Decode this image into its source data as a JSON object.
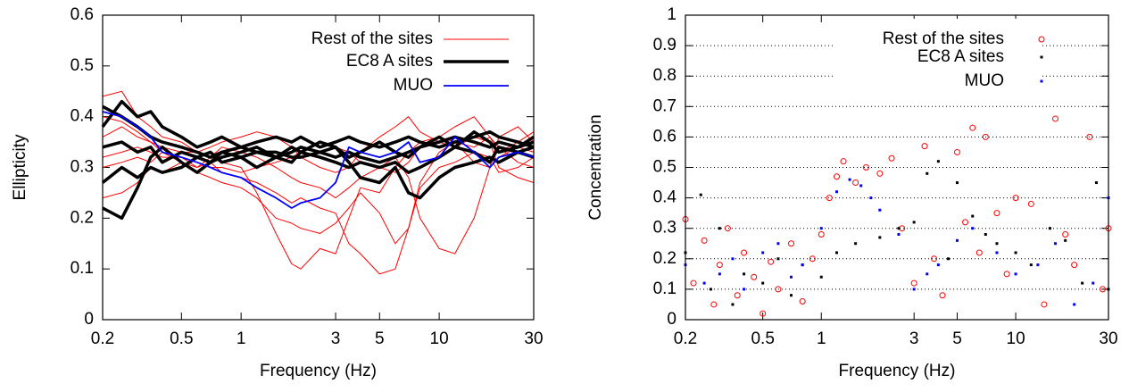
{
  "chart_data": [
    {
      "type": "line",
      "xlabel": "Frequency (Hz)",
      "ylabel": "Ellipticity",
      "xscale": "log",
      "legend": "top-right",
      "grid": false,
      "xlim": [
        0.2,
        30
      ],
      "xticks": [
        0.2,
        0.5,
        1,
        3,
        5,
        10,
        30
      ],
      "ylim": [
        0,
        0.6
      ],
      "yticks": [
        0,
        0.1,
        0.2,
        0.3,
        0.4,
        0.5,
        0.6
      ],
      "x": [
        0.2,
        0.25,
        0.3,
        0.35,
        0.4,
        0.5,
        0.6,
        0.7,
        0.8,
        1,
        1.2,
        1.5,
        1.8,
        2,
        2.5,
        3,
        3.5,
        4,
        5,
        6,
        7,
        8,
        10,
        12,
        15,
        18,
        20,
        25,
        30
      ],
      "series": [
        {
          "name": "Rest of the sites",
          "color": "#ff0000",
          "width": 1,
          "values": [
            [
              0.44,
              0.45,
              0.4,
              0.38,
              0.36,
              0.35,
              0.33,
              0.32,
              0.31,
              0.3,
              0.25,
              0.17,
              0.11,
              0.1,
              0.14,
              0.13,
              0.2,
              0.26,
              0.25,
              0.3,
              0.33,
              0.35,
              0.36,
              0.35,
              0.34,
              0.36,
              0.33,
              0.35,
              0.37
            ],
            [
              0.3,
              0.31,
              0.32,
              0.31,
              0.33,
              0.32,
              0.3,
              0.31,
              0.29,
              0.28,
              0.27,
              0.25,
              0.23,
              0.24,
              0.22,
              0.21,
              0.15,
              0.13,
              0.09,
              0.1,
              0.18,
              0.27,
              0.33,
              0.35,
              0.31,
              0.3,
              0.32,
              0.34,
              0.33
            ],
            [
              0.24,
              0.25,
              0.27,
              0.3,
              0.29,
              0.31,
              0.3,
              0.32,
              0.34,
              0.33,
              0.32,
              0.3,
              0.28,
              0.27,
              0.26,
              0.24,
              0.26,
              0.28,
              0.3,
              0.32,
              0.28,
              0.2,
              0.14,
              0.13,
              0.2,
              0.3,
              0.36,
              0.38,
              0.35
            ],
            [
              0.36,
              0.38,
              0.36,
              0.35,
              0.34,
              0.33,
              0.33,
              0.34,
              0.35,
              0.36,
              0.37,
              0.36,
              0.34,
              0.32,
              0.3,
              0.29,
              0.3,
              0.33,
              0.36,
              0.38,
              0.4,
              0.37,
              0.35,
              0.34,
              0.36,
              0.35,
              0.3,
              0.28,
              0.27
            ],
            [
              0.32,
              0.33,
              0.34,
              0.33,
              0.32,
              0.32,
              0.31,
              0.3,
              0.3,
              0.29,
              0.3,
              0.31,
              0.32,
              0.33,
              0.35,
              0.34,
              0.33,
              0.31,
              0.3,
              0.29,
              0.31,
              0.34,
              0.36,
              0.38,
              0.4,
              0.36,
              0.34,
              0.31,
              0.3
            ],
            [
              0.4,
              0.39,
              0.37,
              0.35,
              0.33,
              0.31,
              0.29,
              0.28,
              0.27,
              0.26,
              0.24,
              0.2,
              0.19,
              0.18,
              0.17,
              0.19,
              0.22,
              0.25,
              0.21,
              0.15,
              0.18,
              0.26,
              0.3,
              0.31,
              0.33,
              0.32,
              0.29,
              0.3,
              0.32
            ]
          ]
        },
        {
          "name": "EC8 A sites",
          "color": "#000000",
          "width": 3.5,
          "values": [
            [
              0.42,
              0.4,
              0.38,
              0.36,
              0.35,
              0.34,
              0.33,
              0.32,
              0.33,
              0.34,
              0.33,
              0.32,
              0.33,
              0.34,
              0.33,
              0.32,
              0.33,
              0.32,
              0.31,
              0.32,
              0.33,
              0.34,
              0.35,
              0.36,
              0.35,
              0.34,
              0.35,
              0.34,
              0.35
            ],
            [
              0.27,
              0.3,
              0.28,
              0.3,
              0.29,
              0.3,
              0.32,
              0.31,
              0.32,
              0.33,
              0.34,
              0.32,
              0.34,
              0.33,
              0.35,
              0.34,
              0.32,
              0.33,
              0.35,
              0.33,
              0.32,
              0.34,
              0.36,
              0.34,
              0.37,
              0.35,
              0.33,
              0.34,
              0.36
            ],
            [
              0.22,
              0.2,
              0.26,
              0.32,
              0.34,
              0.31,
              0.29,
              0.31,
              0.33,
              0.32,
              0.3,
              0.32,
              0.31,
              0.33,
              0.32,
              0.31,
              0.3,
              0.31,
              0.3,
              0.31,
              0.29,
              0.3,
              0.32,
              0.34,
              0.33,
              0.31,
              0.34,
              0.33,
              0.32
            ],
            [
              0.38,
              0.43,
              0.4,
              0.41,
              0.38,
              0.36,
              0.34,
              0.35,
              0.36,
              0.34,
              0.35,
              0.36,
              0.35,
              0.36,
              0.34,
              0.35,
              0.36,
              0.35,
              0.34,
              0.35,
              0.36,
              0.35,
              0.34,
              0.35,
              0.36,
              0.37,
              0.36,
              0.35,
              0.34
            ],
            [
              0.34,
              0.35,
              0.33,
              0.34,
              0.31,
              0.33,
              0.32,
              0.33,
              0.31,
              0.32,
              0.33,
              0.33,
              0.32,
              0.32,
              0.33,
              0.34,
              0.31,
              0.28,
              0.27,
              0.3,
              0.25,
              0.24,
              0.28,
              0.3,
              0.31,
              0.32,
              0.31,
              0.33,
              0.34
            ]
          ]
        },
        {
          "name": "MUO",
          "color": "#0000ff",
          "width": 1.8,
          "values": [
            [
              0.41,
              0.4,
              0.38,
              0.36,
              0.33,
              0.32,
              0.31,
              0.3,
              0.29,
              0.28,
              0.26,
              0.24,
              0.22,
              0.23,
              0.24,
              0.27,
              0.34,
              0.33,
              0.32,
              0.33,
              0.35,
              0.31,
              0.32,
              0.36,
              0.33,
              0.3,
              0.32,
              0.33,
              0.32
            ]
          ]
        }
      ]
    },
    {
      "type": "scatter",
      "xlabel": "Frequency (Hz)",
      "ylabel": "Concentration",
      "xscale": "log",
      "legend": "top-right",
      "grid": true,
      "xlim": [
        0.2,
        30
      ],
      "xticks": [
        0.2,
        0.5,
        1,
        3,
        5,
        10,
        30
      ],
      "ylim": [
        0,
        1
      ],
      "yticks": [
        0,
        0.1,
        0.2,
        0.3,
        0.4,
        0.5,
        0.6,
        0.7,
        0.8,
        0.9,
        1
      ],
      "series": [
        {
          "name": "Rest of the sites",
          "color": "#ff0000",
          "marker": "circle",
          "x": [
            0.2,
            0.22,
            0.25,
            0.28,
            0.3,
            0.33,
            0.37,
            0.4,
            0.45,
            0.5,
            0.55,
            0.6,
            0.7,
            0.8,
            0.9,
            1,
            1.1,
            1.2,
            1.3,
            1.5,
            1.7,
            2,
            2.3,
            2.6,
            3,
            3.4,
            3.8,
            4.2,
            5,
            5.5,
            6,
            6.5,
            7,
            8,
            9,
            10,
            12,
            14,
            16,
            18,
            20,
            24,
            28,
            30
          ],
          "values": [
            0.33,
            0.12,
            0.26,
            0.05,
            0.18,
            0.3,
            0.08,
            0.22,
            0.14,
            0.02,
            0.19,
            0.1,
            0.25,
            0.06,
            0.2,
            0.28,
            0.4,
            0.47,
            0.52,
            0.45,
            0.5,
            0.48,
            0.53,
            0.3,
            0.12,
            0.57,
            0.2,
            0.08,
            0.55,
            0.32,
            0.63,
            0.22,
            0.6,
            0.35,
            0.15,
            0.4,
            0.38,
            0.05,
            0.66,
            0.28,
            0.18,
            0.6,
            0.1,
            0.3
          ]
        },
        {
          "name": "EC8 A sites",
          "color": "#000000",
          "marker": "square",
          "x": [
            0.2,
            0.24,
            0.27,
            0.3,
            0.35,
            0.4,
            0.5,
            0.6,
            0.7,
            0.8,
            1,
            1.2,
            1.5,
            2,
            2.5,
            3,
            3.5,
            4,
            4.5,
            5,
            6,
            7,
            8,
            10,
            12,
            15,
            18,
            22,
            26,
            30
          ],
          "values": [
            0.22,
            0.41,
            0.1,
            0.3,
            0.05,
            0.15,
            0.12,
            0.2,
            0.08,
            0.18,
            0.14,
            0.22,
            0.25,
            0.27,
            0.3,
            0.32,
            0.48,
            0.52,
            0.2,
            0.45,
            0.34,
            0.28,
            0.25,
            0.22,
            0.18,
            0.3,
            0.26,
            0.12,
            0.45,
            0.1
          ]
        },
        {
          "name": "MUO",
          "color": "#0000ff",
          "marker": "square",
          "x": [
            0.2,
            0.25,
            0.3,
            0.35,
            0.4,
            0.5,
            0.6,
            0.7,
            0.8,
            1,
            1.2,
            1.4,
            1.6,
            1.8,
            2,
            2.5,
            3,
            3.5,
            4,
            5,
            6,
            8,
            10,
            13,
            16,
            20,
            25,
            30
          ],
          "values": [
            0.18,
            0.12,
            0.15,
            0.2,
            0.1,
            0.22,
            0.25,
            0.14,
            0.18,
            0.3,
            0.42,
            0.46,
            0.44,
            0.4,
            0.36,
            0.28,
            0.1,
            0.15,
            0.18,
            0.26,
            0.3,
            0.22,
            0.15,
            0.18,
            0.25,
            0.05,
            0.12,
            0.4
          ]
        }
      ]
    }
  ]
}
